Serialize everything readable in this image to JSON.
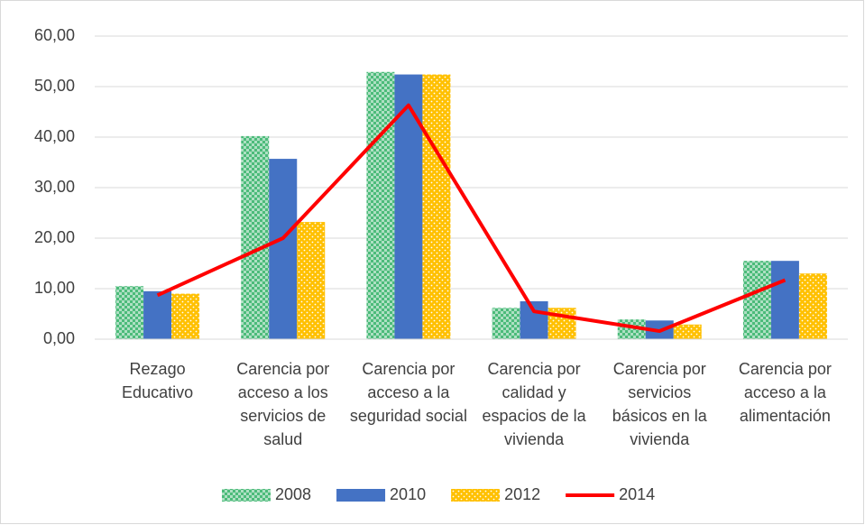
{
  "chart_data": {
    "type": "bar_line",
    "categories": [
      "Rezago Educativo",
      "Carencia por acceso a los servicios de salud",
      "Carencia por acceso a la seguridad social",
      "Carencia por calidad y espacios de la vivienda",
      "Carencia por servicios básicos en la vivienda",
      "Carencia por acceso a la alimentación"
    ],
    "series": [
      {
        "name": "2008",
        "type": "bar",
        "color": "#4cbb7a",
        "pattern": "checker",
        "values": [
          10.5,
          40.2,
          52.9,
          6.2,
          3.9,
          15.5
        ]
      },
      {
        "name": "2010",
        "type": "bar",
        "color": "#4472c4",
        "values": [
          9.5,
          35.7,
          52.4,
          7.5,
          3.7,
          15.5
        ]
      },
      {
        "name": "2012",
        "type": "bar",
        "color": "#ffc000",
        "pattern": "dots",
        "values": [
          9.0,
          23.2,
          52.4,
          6.2,
          2.9,
          13.0
        ]
      },
      {
        "name": "2014",
        "type": "line",
        "color": "#ff0000",
        "values": [
          8.7,
          20.0,
          46.3,
          5.5,
          1.6,
          11.7
        ]
      }
    ],
    "ylim": [
      0,
      60
    ],
    "yticks": [
      {
        "value": 0,
        "label": "0,00"
      },
      {
        "value": 10,
        "label": "10,00"
      },
      {
        "value": 20,
        "label": "20,00"
      },
      {
        "value": 30,
        "label": "30,00"
      },
      {
        "value": 40,
        "label": "40,00"
      },
      {
        "value": 50,
        "label": "50,00"
      },
      {
        "value": 60,
        "label": "60,00"
      }
    ],
    "grid": true,
    "legend": "bottom"
  }
}
